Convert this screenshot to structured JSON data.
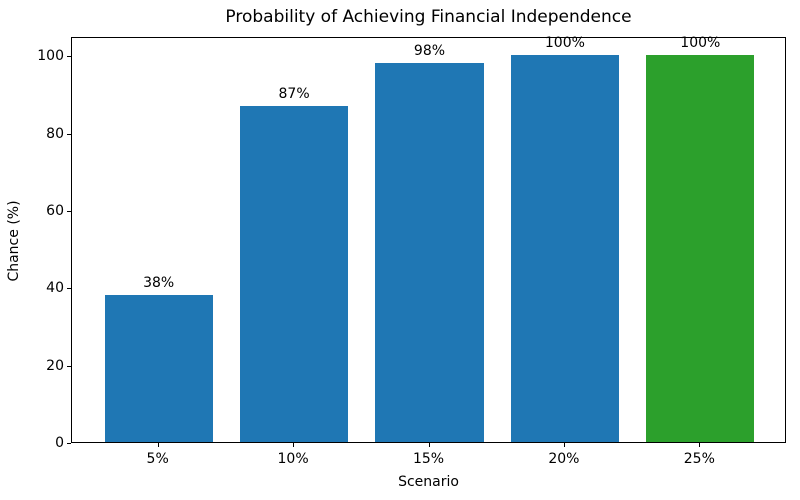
{
  "chart_data": {
    "type": "bar",
    "title": "Probability of Achieving Financial Independence",
    "xlabel": "Scenario",
    "ylabel": "Chance (%)",
    "categories": [
      "5%",
      "10%",
      "15%",
      "20%",
      "25%"
    ],
    "values": [
      38,
      87,
      98,
      100,
      100
    ],
    "value_labels": [
      "38%",
      "87%",
      "98%",
      "100%",
      "100%"
    ],
    "bar_colors": [
      "#1f77b4",
      "#1f77b4",
      "#1f77b4",
      "#1f77b4",
      "#2ca02c"
    ],
    "yticks": [
      0,
      20,
      40,
      60,
      80,
      100
    ],
    "ylim": [
      0,
      105
    ],
    "grid": false,
    "legend_position": "none",
    "background_color": "#ffffff",
    "axis_color": "#000000"
  }
}
